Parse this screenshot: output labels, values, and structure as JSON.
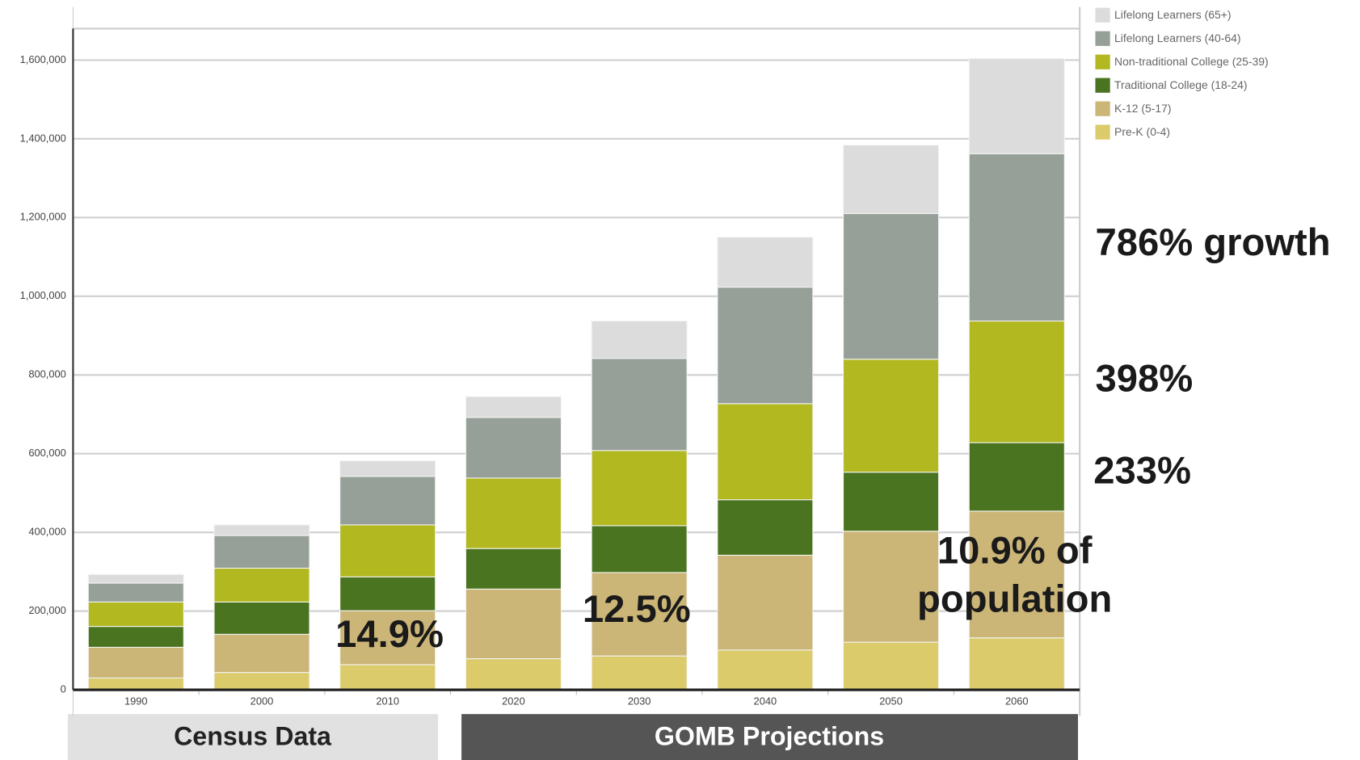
{
  "chart_data": {
    "type": "stacked_bar",
    "categories": [
      "1990",
      "2000",
      "2010",
      "2020",
      "2030",
      "2040",
      "2050",
      "2060"
    ],
    "series": [
      {
        "name": "Pre-K (0-4)",
        "color": "#dccb6a",
        "values": [
          30000,
          44000,
          64000,
          79000,
          86000,
          101000,
          121000,
          132000
        ]
      },
      {
        "name": "K-12 (5-17)",
        "color": "#cbb577",
        "values": [
          78000,
          97000,
          137000,
          177000,
          212000,
          241000,
          282000,
          322000
        ]
      },
      {
        "name": "Traditional College (18-24)",
        "color": "#4b7420",
        "values": [
          53000,
          82000,
          86000,
          103000,
          119000,
          141000,
          150000,
          174000
        ]
      },
      {
        "name": "Non-traditional College (25-39)",
        "color": "#b2b820",
        "values": [
          62000,
          86000,
          132000,
          179000,
          191000,
          244000,
          287000,
          309000
        ]
      },
      {
        "name": "Lifelong Learners (40-64)",
        "color": "#96a098",
        "values": [
          48000,
          83000,
          123000,
          154000,
          234000,
          296000,
          370000,
          425000
        ]
      },
      {
        "name": "Lifelong Learners (65+)",
        "color": "#dcdcdc",
        "values": [
          22000,
          27000,
          40000,
          53000,
          95000,
          127000,
          174000,
          242000
        ]
      }
    ],
    "ylim": [
      0,
      1680000
    ],
    "yticks": [
      0,
      {
        "value": 200000,
        "label": "200,000"
      },
      {
        "value": 400000,
        "label": "400,000"
      },
      {
        "value": 600000,
        "label": "600,000"
      },
      {
        "value": 800000,
        "label": "800,000"
      },
      {
        "value": 1000000,
        "label": "1,000,000"
      },
      {
        "value": 1200000,
        "label": "1,200,000"
      },
      {
        "value": 1400000,
        "label": "1,400,000"
      },
      {
        "value": 1600000,
        "label": "1,600,000"
      }
    ],
    "grid": true,
    "legend": "right",
    "annotations": [
      "786% growth",
      "398%",
      "233%",
      "14.9%",
      "12.5%",
      "10.9% of population"
    ],
    "periods": [
      "Census Data",
      "GOMB Projections"
    ]
  }
}
